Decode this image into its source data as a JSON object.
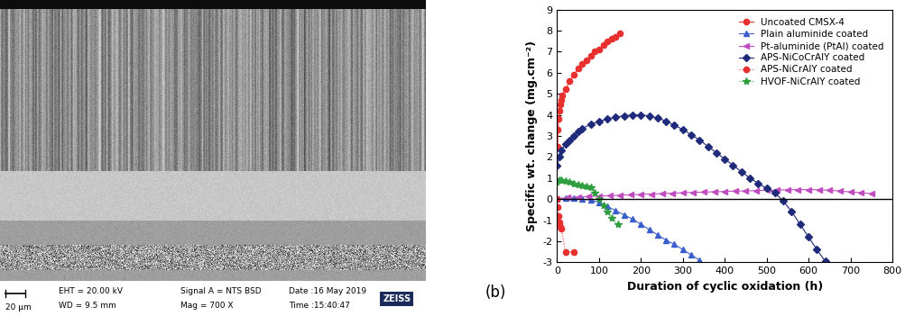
{
  "chart_data": {
    "type": "line",
    "panel_label": "(b)",
    "x_label": "Duration of cyclic oxidation (h)",
    "y_label": "Specific wt. change (mg.cm⁻²)",
    "xlim": [
      0,
      800
    ],
    "xticks": [
      0,
      100,
      200,
      300,
      400,
      500,
      600,
      700,
      800
    ],
    "ylim": [
      -3,
      9
    ],
    "yticks": [
      -3,
      -2,
      -1,
      0,
      1,
      2,
      3,
      4,
      5,
      6,
      7,
      8,
      9
    ],
    "zero_line": 0,
    "legend": "upper right",
    "grid": false,
    "series": [
      {
        "name": "Uncoated CMSX-4",
        "color": "#e8312f",
        "marker": "circle",
        "line_style": "solid",
        "x": [
          1,
          2,
          4,
          6,
          8,
          10,
          12,
          20,
          30,
          40,
          50,
          60,
          70,
          80,
          90,
          100,
          110,
          120,
          130,
          140,
          150
        ],
        "values": [
          2.5,
          3.3,
          3.8,
          4.2,
          4.5,
          4.7,
          4.9,
          5.2,
          5.6,
          5.9,
          6.2,
          6.4,
          6.6,
          6.8,
          7.0,
          7.1,
          7.3,
          7.5,
          7.6,
          7.7,
          7.85
        ]
      },
      {
        "name": "Plain aluminide coated",
        "color": "#3a5fcd",
        "marker": "triangle",
        "line_style": "solid",
        "x": [
          0,
          20,
          40,
          60,
          80,
          100,
          120,
          140,
          160,
          180,
          200,
          220,
          240,
          260,
          280,
          300,
          320,
          340
        ],
        "values": [
          0,
          0.05,
          0.05,
          0.0,
          -0.05,
          -0.15,
          -0.35,
          -0.55,
          -0.75,
          -0.95,
          -1.2,
          -1.45,
          -1.7,
          -1.95,
          -2.15,
          -2.4,
          -2.65,
          -2.9
        ]
      },
      {
        "name": "Pt-aluminide (PtAl) coated",
        "color": "#c04dbf",
        "marker": "triangle_left",
        "line_style": "solid",
        "x": [
          0,
          25,
          50,
          75,
          100,
          125,
          150,
          175,
          200,
          225,
          250,
          275,
          300,
          325,
          350,
          375,
          400,
          425,
          450,
          475,
          500,
          525,
          550,
          575,
          600,
          625,
          650,
          675,
          700,
          725,
          750
        ],
        "values": [
          0,
          0.08,
          0.1,
          0.12,
          0.14,
          0.16,
          0.18,
          0.2,
          0.22,
          0.24,
          0.26,
          0.28,
          0.3,
          0.32,
          0.33,
          0.35,
          0.36,
          0.38,
          0.39,
          0.4,
          0.42,
          0.43,
          0.44,
          0.45,
          0.45,
          0.44,
          0.42,
          0.38,
          0.34,
          0.3,
          0.26
        ]
      },
      {
        "name": "APS-NiCoCrAlY coated",
        "color": "#1f2a7a",
        "marker": "diamond",
        "line_style": "solid",
        "x": [
          0,
          5,
          10,
          20,
          30,
          40,
          50,
          60,
          80,
          100,
          120,
          140,
          160,
          180,
          200,
          220,
          240,
          260,
          280,
          300,
          320,
          340,
          360,
          380,
          400,
          420,
          440,
          460,
          480,
          500,
          520,
          540,
          560,
          580,
          600,
          620,
          640
        ],
        "values": [
          1.6,
          2.0,
          2.3,
          2.6,
          2.8,
          3.0,
          3.2,
          3.35,
          3.55,
          3.7,
          3.8,
          3.9,
          3.95,
          4.0,
          4.0,
          3.95,
          3.85,
          3.7,
          3.5,
          3.3,
          3.05,
          2.8,
          2.5,
          2.2,
          1.9,
          1.6,
          1.3,
          1.0,
          0.75,
          0.5,
          0.3,
          -0.1,
          -0.6,
          -1.2,
          -1.8,
          -2.4,
          -2.95
        ]
      },
      {
        "name": "APS-NiCrAlY coated",
        "color": "#e8312f",
        "marker": "circle",
        "line_style": "dotted",
        "x": [
          0,
          2,
          4,
          6,
          8,
          10,
          20,
          40
        ],
        "values": [
          0,
          -0.4,
          -0.8,
          -1.1,
          -1.3,
          -1.4,
          -2.5,
          -2.5
        ]
      },
      {
        "name": "HVOF-NiCrAlY coated",
        "color": "#2e9e3e",
        "marker": "star",
        "line_style": "dotted",
        "x": [
          0,
          5,
          10,
          20,
          30,
          40,
          50,
          60,
          70,
          80,
          90,
          100,
          110,
          120,
          130,
          145
        ],
        "values": [
          0.8,
          0.9,
          0.9,
          0.85,
          0.8,
          0.75,
          0.7,
          0.65,
          0.6,
          0.55,
          0.3,
          0.0,
          -0.3,
          -0.6,
          -0.9,
          -1.2
        ]
      }
    ]
  },
  "micrograph": {
    "scale_bar": "20 µm",
    "info": [
      "EHT = 20.00 kV",
      "WD = 9.5 mm",
      "Signal A = NTS BSD",
      "Mag = 700 X",
      "Date :16 May 2019",
      "Time :15:40:47"
    ],
    "brand": "ZEISS"
  }
}
